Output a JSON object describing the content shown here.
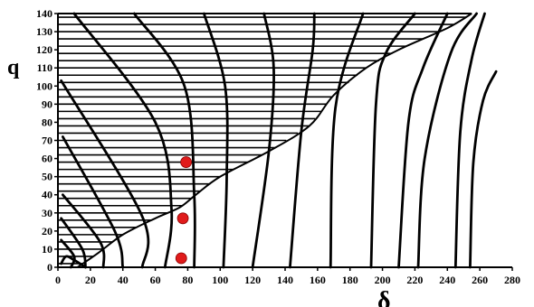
{
  "chart_data": {
    "type": "line",
    "title": "",
    "xlabel": "δ",
    "ylabel": "q",
    "xlim": [
      0,
      280
    ],
    "ylim": [
      0,
      140
    ],
    "x_ticks": [
      0,
      20,
      40,
      60,
      80,
      100,
      120,
      140,
      160,
      180,
      200,
      220,
      240,
      260,
      280
    ],
    "y_ticks": [
      0,
      10,
      20,
      30,
      40,
      50,
      60,
      70,
      80,
      90,
      100,
      110,
      120,
      130,
      140
    ],
    "grid": false,
    "line_color": "#000000",
    "hatching": {
      "q_values": [
        2,
        6,
        10,
        14,
        18,
        22,
        26,
        30,
        34,
        38,
        42,
        46,
        50,
        54,
        58,
        62,
        66,
        70,
        74,
        78,
        82,
        86,
        90,
        94,
        98,
        102,
        106,
        110,
        114,
        118,
        122,
        126,
        130,
        134,
        138,
        140
      ],
      "boundary_curve": [
        {
          "x": 12,
          "y": 0
        },
        {
          "x": 25,
          "y": 8
        },
        {
          "x": 40,
          "y": 18
        },
        {
          "x": 60,
          "y": 27
        },
        {
          "x": 75,
          "y": 33
        },
        {
          "x": 85,
          "y": 40
        },
        {
          "x": 100,
          "y": 50
        },
        {
          "x": 130,
          "y": 64
        },
        {
          "x": 155,
          "y": 78
        },
        {
          "x": 170,
          "y": 95
        },
        {
          "x": 190,
          "y": 110
        },
        {
          "x": 210,
          "y": 120
        },
        {
          "x": 240,
          "y": 132
        },
        {
          "x": 255,
          "y": 140
        }
      ]
    },
    "series": [
      {
        "points": [
          {
            "x": 2,
            "y": 2
          },
          {
            "x": 5,
            "y": 6
          },
          {
            "x": 10,
            "y": 4
          },
          {
            "x": 17,
            "y": 0
          }
        ]
      },
      {
        "points": [
          {
            "x": 8,
            "y": 0
          },
          {
            "x": 10,
            "y": 6
          },
          {
            "x": 2,
            "y": 15
          }
        ]
      },
      {
        "points": [
          {
            "x": 17,
            "y": 0
          },
          {
            "x": 15,
            "y": 10
          },
          {
            "x": 2,
            "y": 27
          }
        ]
      },
      {
        "points": [
          {
            "x": 28,
            "y": 0
          },
          {
            "x": 26,
            "y": 14
          },
          {
            "x": 3,
            "y": 40
          }
        ]
      },
      {
        "points": [
          {
            "x": 40,
            "y": 0
          },
          {
            "x": 35,
            "y": 20
          },
          {
            "x": 3,
            "y": 72
          }
        ]
      },
      {
        "points": [
          {
            "x": 52,
            "y": 0
          },
          {
            "x": 52,
            "y": 28
          },
          {
            "x": 2,
            "y": 103
          }
        ]
      },
      {
        "points": [
          {
            "x": 66,
            "y": 0
          },
          {
            "x": 70,
            "y": 32
          },
          {
            "x": 60,
            "y": 80
          },
          {
            "x": 10,
            "y": 140
          }
        ]
      },
      {
        "points": [
          {
            "x": 84,
            "y": 0
          },
          {
            "x": 84,
            "y": 40
          },
          {
            "x": 78,
            "y": 100
          },
          {
            "x": 47,
            "y": 140
          }
        ]
      },
      {
        "points": [
          {
            "x": 102,
            "y": 0
          },
          {
            "x": 104,
            "y": 50
          },
          {
            "x": 103,
            "y": 100
          },
          {
            "x": 90,
            "y": 140
          }
        ]
      },
      {
        "points": [
          {
            "x": 120,
            "y": 0
          },
          {
            "x": 130,
            "y": 64
          },
          {
            "x": 133,
            "y": 110
          },
          {
            "x": 127,
            "y": 140
          }
        ]
      },
      {
        "points": [
          {
            "x": 143,
            "y": 0
          },
          {
            "x": 150,
            "y": 75
          },
          {
            "x": 157,
            "y": 120
          },
          {
            "x": 158,
            "y": 140
          }
        ]
      },
      {
        "points": [
          {
            "x": 168,
            "y": 0
          },
          {
            "x": 171,
            "y": 88
          },
          {
            "x": 188,
            "y": 140
          }
        ]
      },
      {
        "points": [
          {
            "x": 193,
            "y": 0
          },
          {
            "x": 196,
            "y": 90
          },
          {
            "x": 202,
            "y": 118
          },
          {
            "x": 220,
            "y": 140
          }
        ]
      },
      {
        "points": [
          {
            "x": 210,
            "y": 0
          },
          {
            "x": 216,
            "y": 80
          },
          {
            "x": 225,
            "y": 110
          },
          {
            "x": 240,
            "y": 140
          }
        ]
      },
      {
        "points": [
          {
            "x": 222,
            "y": 0
          },
          {
            "x": 226,
            "y": 60
          },
          {
            "x": 242,
            "y": 118
          },
          {
            "x": 258,
            "y": 140
          }
        ]
      },
      {
        "points": [
          {
            "x": 245,
            "y": 0
          },
          {
            "x": 248,
            "y": 75
          },
          {
            "x": 255,
            "y": 115
          },
          {
            "x": 263,
            "y": 140
          }
        ]
      },
      {
        "points": [
          {
            "x": 254,
            "y": 0
          },
          {
            "x": 256,
            "y": 58
          },
          {
            "x": 262,
            "y": 92
          },
          {
            "x": 270,
            "y": 108
          }
        ]
      }
    ],
    "markers": {
      "color": "#e01b1b",
      "points": [
        {
          "x": 79,
          "y": 58
        },
        {
          "x": 77,
          "y": 27
        },
        {
          "x": 76,
          "y": 5
        }
      ]
    }
  }
}
